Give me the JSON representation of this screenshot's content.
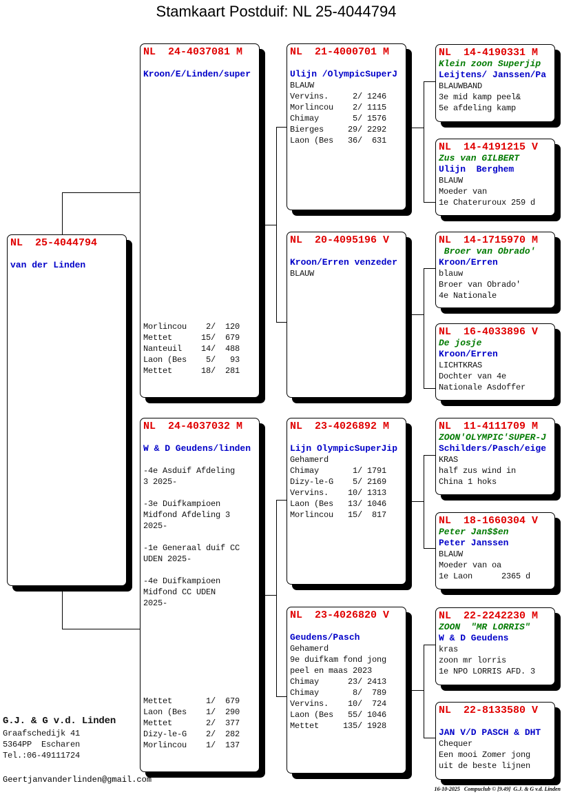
{
  "title": "Stamkaart Postduif: NL  25-4044794",
  "cards": [
    {
      "key": "main",
      "ring": "NL  25-4044794",
      "name": "",
      "strain": "van der Linden",
      "lines": [],
      "results": []
    },
    {
      "key": "sire",
      "ring": "NL  24-4037081 M",
      "name": "",
      "strain": "Kroon/E/Linden/super",
      "lines": [],
      "results": [
        "Morlincou    2/  120",
        "Mettet      15/  679",
        "Nanteuil    14/  488",
        "Laon (Bes    5/   93",
        "Mettet      18/  281"
      ]
    },
    {
      "key": "dam",
      "ring": "NL  24-4037032 M",
      "name": "",
      "strain": "W & D Geudens/linden",
      "lines": [
        "",
        "-4e Asduif Afdeling",
        "3 2025-",
        "",
        "-3e Duifkampioen",
        "Midfond Afdeling 3",
        "2025-",
        "",
        "-1e Generaal duif CC",
        "UDEN 2025-",
        "",
        "-4e Duifkampioen",
        "Midfond CC UDEN",
        "2025-"
      ],
      "results": [
        "Mettet       1/  679",
        "Laon (Bes    1/  290",
        "Mettet       2/  377",
        "Dizy-le-G    2/  282",
        "Morlincou    1/  137"
      ]
    },
    {
      "key": "ss",
      "ring": "NL  21-4000701 M",
      "name": "",
      "strain": "Ulijn /OlympicSuperJ",
      "lines": [
        "BLAUW",
        "Vervins.     2/ 1246",
        "Morlincou    2/ 1115",
        "Chimay       5/ 1576",
        "Bierges     29/ 2292",
        "Laon (Bes   36/  631"
      ],
      "results": []
    },
    {
      "key": "sd",
      "ring": "NL  20-4095196 V",
      "name": "",
      "strain": "Kroon/Erren venzeder",
      "lines": [
        "BLAUW"
      ],
      "results": []
    },
    {
      "key": "ds",
      "ring": "NL  23-4026892 M",
      "name": "",
      "strain": "Lijn OlympicSuperJip",
      "lines": [
        "Gehamerd",
        "Chimay       1/ 1791",
        "Dizy-le-G    5/ 2169",
        "Vervins.    10/ 1313",
        "Laon (Bes   13/ 1046",
        "Morlincou   15/  817"
      ],
      "results": []
    },
    {
      "key": "dd",
      "ring": "NL  23-4026820 V",
      "name": "",
      "strain": "Geudens/Pasch",
      "lines": [
        "Gehamerd",
        "9e duifkam fond jong",
        "peel en maas 2023",
        "Chimay      23/ 2413",
        "Chimay       8/  789",
        "Vervins.    10/  724",
        "Laon (Bes   55/ 1046",
        "Mettet     135/ 1928"
      ],
      "results": []
    },
    {
      "key": "sss",
      "ring": "NL  14-4190331 M",
      "name": "Klein zoon Superjip",
      "strain": "Leijtens/ Janssen/Pa",
      "lines": [
        "BLAUWBAND",
        "3e mid kamp peel&",
        "5e afdeling kamp"
      ],
      "results": []
    },
    {
      "key": "ssd",
      "ring": "NL  14-4191215 V",
      "name": "Zus van GILBERT",
      "strain": "Ulijn  Berghem",
      "lines": [
        "BLAUW",
        "Moeder van",
        "1e Chateruroux 259 d"
      ],
      "results": []
    },
    {
      "key": "sds",
      "ring": "NL  14-1715970 M",
      "name": " Broer van Obrado'",
      "strain": "Kroon/Erren",
      "lines": [
        "blauw",
        "Broer van Obrado'",
        "4e Nationale"
      ],
      "results": []
    },
    {
      "key": "sdd",
      "ring": "NL  16-4033896 V",
      "name": "De josje",
      "strain": "Kroon/Erren",
      "lines": [
        "LICHTKRAS",
        "Dochter van 4e",
        "Nationale Asdoffer"
      ],
      "results": []
    },
    {
      "key": "dss",
      "ring": "NL  11-4111709 M",
      "name": "ZOON'OLYMPIC'SUPER-J",
      "strain": "Schilders/Pasch/eige",
      "lines": [
        "KRAS",
        "half zus wind in",
        "China 1 hoks"
      ],
      "results": []
    },
    {
      "key": "dsd",
      "ring": "NL  18-1660304 V",
      "name": "Peter Jan$$en",
      "strain": "Peter Janssen",
      "lines": [
        "BLAUW",
        "Moeder van oa",
        "1e Laon      2365 d"
      ],
      "results": []
    },
    {
      "key": "dds",
      "ring": "NL  22-2242230 M",
      "name": "ZOON  \"MR LORRIS\"",
      "strain": "W & D Geudens",
      "lines": [
        "kras",
        "zoon mr lorris",
        "1e NPO LORRIS AFD. 3"
      ],
      "results": []
    },
    {
      "key": "ddd",
      "ring": "NL  22-8133580 V",
      "name": "",
      "strain": "JAN V/D PASCH & DHT",
      "lines": [
        "Chequer",
        "Een mooi Zomer jong",
        "uit de beste lijnen"
      ],
      "results": []
    }
  ],
  "owner": {
    "name": "G.J. & G v.d. Linden",
    "address": "Graafschedijk 41",
    "city": "5364PP  Escharen",
    "phone": "Tel.:06-49111724",
    "email": "Geertjanvanderlinden@gmail.com"
  },
  "footer": "16-10-2025   Compuclub © [9.49]  G.J. & G v.d. Linden"
}
